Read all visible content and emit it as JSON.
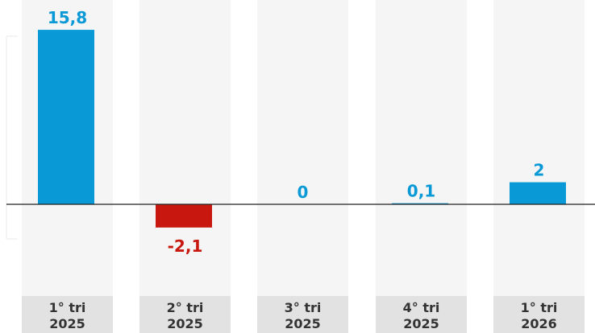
{
  "chart_data": {
    "type": "bar",
    "categories": [
      [
        "1° tri",
        "2025"
      ],
      [
        "2° tri",
        "2025"
      ],
      [
        "3° tri",
        "2025"
      ],
      [
        "4° tri",
        "2025"
      ],
      [
        "1° tri",
        "2026"
      ]
    ],
    "values": [
      15.8,
      -2.1,
      0,
      0.1,
      2
    ],
    "value_labels": [
      "15,8",
      "-2,1",
      "0",
      "0,1",
      "2"
    ],
    "ylim": [
      -8.3,
      18.5
    ],
    "grid": false,
    "colors": {
      "positive": "#0899d6",
      "negative": "#c8170f",
      "column_bg": "#f5f5f5",
      "tick_bg": "#e2e2e2",
      "baseline": "#222222"
    }
  }
}
